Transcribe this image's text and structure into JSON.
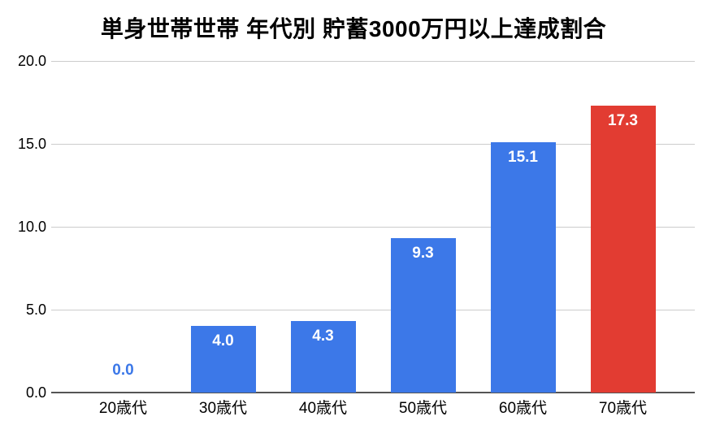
{
  "chart_data": {
    "type": "bar",
    "title": "単身世帯世帯 年代別 貯蓄3000万円以上達成割合",
    "categories": [
      "20歳代",
      "30歳代",
      "40歳代",
      "50歳代",
      "60歳代",
      "70歳代"
    ],
    "values": [
      0.0,
      4.0,
      4.3,
      9.3,
      15.1,
      17.3
    ],
    "value_labels": [
      "0.0",
      "4.0",
      "4.3",
      "9.3",
      "15.1",
      "17.3"
    ],
    "bar_colors": [
      "#3c78e8",
      "#3c78e8",
      "#3c78e8",
      "#3c78e8",
      "#3c78e8",
      "#e23c32"
    ],
    "xlabel": "",
    "ylabel": "",
    "ylim": [
      0,
      20
    ],
    "ytick_step": 5,
    "ytick_labels": [
      "0.0",
      "5.0",
      "10.0",
      "15.0",
      "20.0"
    ],
    "grid": true,
    "legend": "none",
    "style": {
      "bar_blue": "#3c78e8",
      "bar_red": "#e23c32",
      "gridline": "#cccccc",
      "axis_line": "#555555",
      "inside_label": "#ffffff",
      "text": "#000000",
      "background": "#ffffff"
    }
  }
}
